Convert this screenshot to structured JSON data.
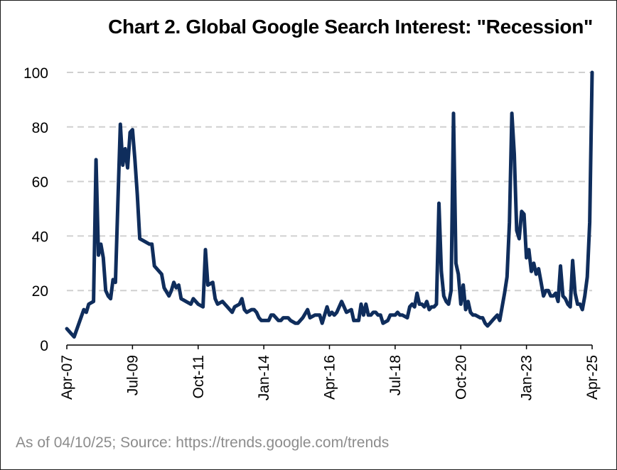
{
  "title": "Chart 2. Global Google Search Interest: \"Recession\"",
  "source": "As of 04/10/25; Source: https://trends.google.com/trends",
  "colors": {
    "line": "#0f2d5c",
    "grid": "#d0d0d0",
    "axis": "#000000",
    "source_text": "#8c8c8c"
  },
  "chart_data": {
    "type": "line",
    "title": "Chart 2. Global Google Search Interest: \"Recession\"",
    "xlabel": "",
    "ylabel": "",
    "ylim": [
      0,
      100
    ],
    "yticks": [
      0,
      20,
      40,
      60,
      80,
      100
    ],
    "xlim": [
      "2007-04",
      "2025-04"
    ],
    "xticks": [
      {
        "date": "2007-04",
        "label": "Apr-07"
      },
      {
        "date": "2009-07",
        "label": "Jul-09"
      },
      {
        "date": "2011-10",
        "label": "Oct-11"
      },
      {
        "date": "2014-01",
        "label": "Jan-14"
      },
      {
        "date": "2016-04",
        "label": "Apr-16"
      },
      {
        "date": "2018-07",
        "label": "Jul-18"
      },
      {
        "date": "2020-10",
        "label": "Oct-20"
      },
      {
        "date": "2023-01",
        "label": "Jan-23"
      },
      {
        "date": "2025-04",
        "label": "Apr-25"
      }
    ],
    "grid": "horizontal dashed",
    "series": [
      {
        "values": [
          [
            "2007-04",
            6
          ],
          [
            "2007-05",
            5
          ],
          [
            "2007-07",
            3
          ],
          [
            "2007-09",
            8
          ],
          [
            "2007-11",
            13
          ],
          [
            "2007-12",
            12
          ],
          [
            "2008-01",
            15
          ],
          [
            "2008-03",
            16
          ],
          [
            "2008-04",
            68
          ],
          [
            "2008-05",
            33
          ],
          [
            "2008-06",
            37
          ],
          [
            "2008-07",
            32
          ],
          [
            "2008-08",
            20
          ],
          [
            "2008-09",
            18
          ],
          [
            "2008-10",
            17
          ],
          [
            "2008-11",
            24
          ],
          [
            "2008-12",
            23
          ],
          [
            "2009-01",
            52
          ],
          [
            "2009-02",
            81
          ],
          [
            "2009-03",
            66
          ],
          [
            "2009-04",
            72
          ],
          [
            "2009-05",
            65
          ],
          [
            "2009-06",
            78
          ],
          [
            "2009-07",
            79
          ],
          [
            "2009-08",
            68
          ],
          [
            "2009-09",
            55
          ],
          [
            "2009-10",
            39
          ],
          [
            "2009-12",
            38
          ],
          [
            "2010-02",
            37
          ],
          [
            "2010-03",
            37
          ],
          [
            "2010-04",
            29
          ],
          [
            "2010-05",
            28
          ],
          [
            "2010-07",
            26
          ],
          [
            "2010-08",
            21
          ],
          [
            "2010-10",
            18
          ],
          [
            "2010-11",
            20
          ],
          [
            "2010-12",
            23
          ],
          [
            "2011-01",
            21
          ],
          [
            "2011-02",
            22
          ],
          [
            "2011-03",
            17
          ],
          [
            "2011-05",
            16
          ],
          [
            "2011-07",
            15
          ],
          [
            "2011-08",
            17
          ],
          [
            "2011-10",
            15
          ],
          [
            "2011-12",
            14
          ],
          [
            "2012-01",
            35
          ],
          [
            "2012-02",
            22
          ],
          [
            "2012-04",
            23
          ],
          [
            "2012-05",
            17
          ],
          [
            "2012-06",
            15
          ],
          [
            "2012-08",
            16
          ],
          [
            "2012-09",
            15
          ],
          [
            "2012-10",
            14
          ],
          [
            "2012-12",
            12
          ],
          [
            "2013-01",
            14
          ],
          [
            "2013-03",
            15
          ],
          [
            "2013-04",
            17
          ],
          [
            "2013-05",
            13
          ],
          [
            "2013-06",
            12
          ],
          [
            "2013-08",
            13
          ],
          [
            "2013-09",
            13
          ],
          [
            "2013-10",
            12
          ],
          [
            "2013-11",
            10
          ],
          [
            "2013-12",
            9
          ],
          [
            "2014-01",
            9
          ],
          [
            "2014-03",
            9
          ],
          [
            "2014-04",
            11
          ],
          [
            "2014-05",
            11
          ],
          [
            "2014-06",
            10
          ],
          [
            "2014-07",
            9
          ],
          [
            "2014-08",
            9
          ],
          [
            "2014-09",
            10
          ],
          [
            "2014-10",
            10
          ],
          [
            "2014-11",
            10
          ],
          [
            "2014-12",
            9
          ],
          [
            "2015-02",
            8
          ],
          [
            "2015-03",
            8
          ],
          [
            "2015-05",
            10
          ],
          [
            "2015-07",
            13
          ],
          [
            "2015-08",
            10
          ],
          [
            "2015-10",
            11
          ],
          [
            "2015-11",
            11
          ],
          [
            "2015-12",
            11
          ],
          [
            "2016-01",
            8
          ],
          [
            "2016-03",
            14
          ],
          [
            "2016-04",
            11
          ],
          [
            "2016-05",
            12
          ],
          [
            "2016-06",
            11
          ],
          [
            "2016-07",
            12
          ],
          [
            "2016-09",
            16
          ],
          [
            "2016-10",
            14
          ],
          [
            "2016-11",
            12
          ],
          [
            "2017-01",
            13
          ],
          [
            "2017-02",
            9
          ],
          [
            "2017-04",
            9
          ],
          [
            "2017-05",
            15
          ],
          [
            "2017-06",
            11
          ],
          [
            "2017-07",
            15
          ],
          [
            "2017-08",
            11
          ],
          [
            "2017-09",
            11
          ],
          [
            "2017-10",
            12
          ],
          [
            "2017-11",
            12
          ],
          [
            "2017-12",
            11
          ],
          [
            "2018-01",
            11
          ],
          [
            "2018-02",
            8
          ],
          [
            "2018-04",
            9
          ],
          [
            "2018-05",
            11
          ],
          [
            "2018-07",
            11
          ],
          [
            "2018-08",
            12
          ],
          [
            "2018-09",
            11
          ],
          [
            "2018-10",
            11
          ],
          [
            "2018-12",
            10
          ],
          [
            "2019-01",
            14
          ],
          [
            "2019-02",
            15
          ],
          [
            "2019-03",
            14
          ],
          [
            "2019-04",
            19
          ],
          [
            "2019-05",
            15
          ],
          [
            "2019-06",
            15
          ],
          [
            "2019-07",
            14
          ],
          [
            "2019-08",
            16
          ],
          [
            "2019-09",
            13
          ],
          [
            "2019-10",
            14
          ],
          [
            "2019-11",
            14
          ],
          [
            "2019-12",
            15
          ],
          [
            "2020-01",
            52
          ],
          [
            "2020-02",
            27
          ],
          [
            "2020-03",
            18
          ],
          [
            "2020-04",
            16
          ],
          [
            "2020-05",
            15
          ],
          [
            "2020-06",
            20
          ],
          [
            "2020-07",
            85
          ],
          [
            "2020-08",
            30
          ],
          [
            "2020-09",
            26
          ],
          [
            "2020-10",
            15
          ],
          [
            "2020-11",
            22
          ],
          [
            "2020-12",
            13
          ],
          [
            "2021-01",
            16
          ],
          [
            "2021-02",
            12
          ],
          [
            "2021-03",
            11
          ],
          [
            "2021-04",
            11
          ],
          [
            "2021-06",
            10
          ],
          [
            "2021-07",
            10
          ],
          [
            "2021-08",
            8
          ],
          [
            "2021-09",
            7
          ],
          [
            "2021-10",
            8
          ],
          [
            "2021-11",
            9
          ],
          [
            "2021-12",
            10
          ],
          [
            "2022-01",
            11
          ],
          [
            "2022-02",
            9
          ],
          [
            "2022-03",
            14
          ],
          [
            "2022-04",
            19
          ],
          [
            "2022-05",
            25
          ],
          [
            "2022-06",
            45
          ],
          [
            "2022-07",
            85
          ],
          [
            "2022-08",
            70
          ],
          [
            "2022-09",
            42
          ],
          [
            "2022-10",
            39
          ],
          [
            "2022-11",
            49
          ],
          [
            "2022-12",
            48
          ],
          [
            "2023-01",
            32
          ],
          [
            "2023-02",
            35
          ],
          [
            "2023-03",
            27
          ],
          [
            "2023-04",
            30
          ],
          [
            "2023-05",
            26
          ],
          [
            "2023-06",
            28
          ],
          [
            "2023-07",
            23
          ],
          [
            "2023-08",
            18
          ],
          [
            "2023-09",
            20
          ],
          [
            "2023-10",
            20
          ],
          [
            "2023-11",
            18
          ],
          [
            "2023-12",
            18
          ],
          [
            "2024-01",
            19
          ],
          [
            "2024-02",
            16
          ],
          [
            "2024-03",
            29
          ],
          [
            "2024-04",
            18
          ],
          [
            "2024-05",
            17
          ],
          [
            "2024-06",
            15
          ],
          [
            "2024-07",
            14
          ],
          [
            "2024-08",
            31
          ],
          [
            "2024-09",
            19
          ],
          [
            "2024-10",
            15
          ],
          [
            "2024-11",
            15
          ],
          [
            "2024-12",
            13
          ],
          [
            "2025-01",
            18
          ],
          [
            "2025-02",
            25
          ],
          [
            "2025-03",
            45
          ],
          [
            "2025-04",
            100
          ]
        ]
      }
    ]
  }
}
